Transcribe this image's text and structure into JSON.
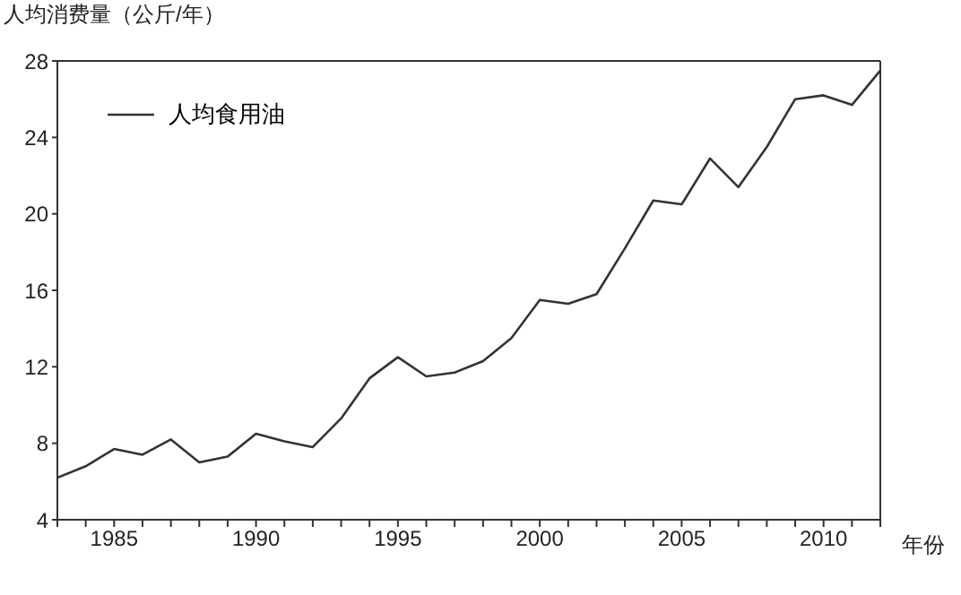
{
  "chart_data": {
    "type": "line",
    "ylabel": "人均消费量（公斤/年）",
    "xlabel": "年份",
    "x": [
      1983,
      1984,
      1985,
      1986,
      1987,
      1988,
      1989,
      1990,
      1991,
      1992,
      1993,
      1994,
      1995,
      1996,
      1997,
      1998,
      1999,
      2000,
      2001,
      2002,
      2003,
      2004,
      2005,
      2006,
      2007,
      2008,
      2009,
      2010,
      2011,
      2012
    ],
    "series": [
      {
        "name": "人均食用油",
        "color": "#333333",
        "values": [
          6.2,
          6.8,
          7.7,
          7.4,
          8.2,
          7.0,
          7.3,
          8.5,
          8.1,
          7.8,
          9.3,
          11.4,
          12.5,
          11.5,
          11.7,
          12.3,
          13.5,
          15.5,
          15.3,
          15.8,
          18.2,
          20.7,
          20.5,
          22.9,
          21.4,
          23.5,
          26.0,
          26.2,
          25.7,
          27.5
        ]
      }
    ],
    "xlim": [
      1983,
      2012
    ],
    "xticks": [
      {
        "value": 1983,
        "label": null
      },
      {
        "value": 1984,
        "label": null
      },
      1985,
      {
        "value": 1986,
        "label": null
      },
      {
        "value": 1987,
        "label": null
      },
      {
        "value": 1988,
        "label": null
      },
      {
        "value": 1989,
        "label": null
      },
      1990,
      {
        "value": 1991,
        "label": null
      },
      {
        "value": 1992,
        "label": null
      },
      {
        "value": 1993,
        "label": null
      },
      {
        "value": 1994,
        "label": null
      },
      1995,
      {
        "value": 1996,
        "label": null
      },
      {
        "value": 1997,
        "label": null
      },
      {
        "value": 1998,
        "label": null
      },
      {
        "value": 1999,
        "label": null
      },
      2000,
      {
        "value": 2001,
        "label": null
      },
      {
        "value": 2002,
        "label": null
      },
      {
        "value": 2003,
        "label": null
      },
      {
        "value": 2004,
        "label": null
      },
      2005,
      {
        "value": 2006,
        "label": null
      },
      {
        "value": 2007,
        "label": null
      },
      {
        "value": 2008,
        "label": null
      },
      {
        "value": 2009,
        "label": null
      },
      2010,
      {
        "value": 2011,
        "label": null
      },
      {
        "value": 2012,
        "label": null
      }
    ],
    "ylim": [
      4,
      28
    ],
    "yticks": [
      4,
      8,
      12,
      16,
      20,
      24,
      28
    ],
    "grid": false,
    "legend": "top left",
    "marker": "none",
    "line_style": "solid"
  }
}
